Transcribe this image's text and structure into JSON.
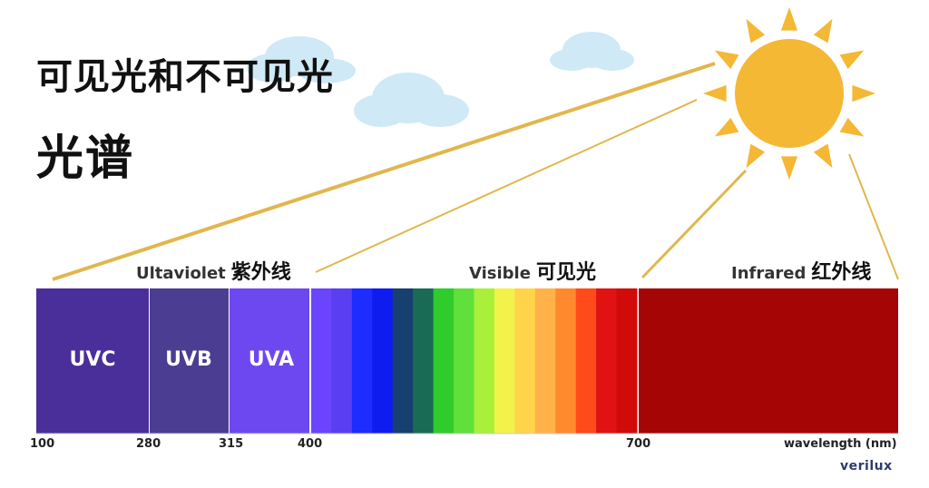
{
  "title": {
    "line1": "可见光和不可见光",
    "line2": "光谱"
  },
  "regions": {
    "uv": {
      "en": "Ultaviolet",
      "zh": "紫外线"
    },
    "visible": {
      "en": "Visible",
      "zh": "可见光"
    },
    "infrared": {
      "en": "Infrared",
      "zh": "红外线"
    }
  },
  "bands": [
    {
      "label": "UVC",
      "color": "#4a2f9a"
    },
    {
      "label": "UVB",
      "color": "#4b3d92"
    },
    {
      "label": "UVA",
      "color": "#6d48f0"
    }
  ],
  "visible_colors": [
    "#6a44ff",
    "#5a3ef2",
    "#1d2cff",
    "#0f1cf0",
    "#16406f",
    "#1a6b55",
    "#2fcc2c",
    "#5fe03a",
    "#a8f03a",
    "#f2f24a",
    "#ffd34a",
    "#ffb24a",
    "#ff8a2e",
    "#ff4a1a",
    "#e01212",
    "#d10a0a"
  ],
  "infrared_color": "#a50505",
  "ticks": [
    "100",
    "280",
    "315",
    "400",
    "700"
  ],
  "axis_label": "wavelength (nm)",
  "brand": "verilux",
  "colors": {
    "sun": "#f4b834",
    "ray": "#e2b64e",
    "cloud": "#cfe9f6"
  }
}
